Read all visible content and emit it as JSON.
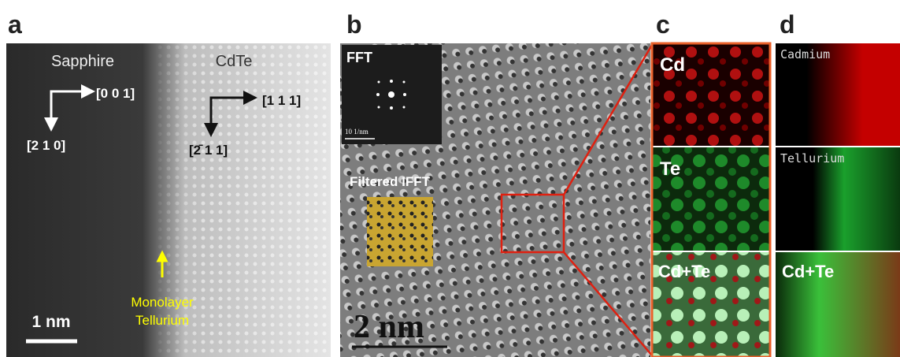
{
  "panel_a": {
    "label": "a",
    "left_material": "Sapphire",
    "right_material": "CdTe",
    "dir_left_h": "[0 0 1]",
    "dir_left_v": "[2 1 0]",
    "dir_right_h": "[1 1 1]",
    "dir_right_v": "[2̄ 1 1]",
    "annotation": [
      "Monolayer",
      "Tellurium"
    ],
    "scale_bar": "1 nm"
  },
  "panel_b": {
    "label": "b",
    "fft_title": "FFT",
    "fft_scale": "10 1/nm",
    "ifft_title": "Filtered IFFT",
    "scale_bar": "2 nm"
  },
  "panel_c": {
    "label": "c",
    "maps": [
      "Cd",
      "Te",
      "Cd+Te"
    ]
  },
  "panel_d": {
    "label": "d",
    "maps": [
      "Cadmium",
      "Tellurium",
      "Cd+Te"
    ]
  }
}
